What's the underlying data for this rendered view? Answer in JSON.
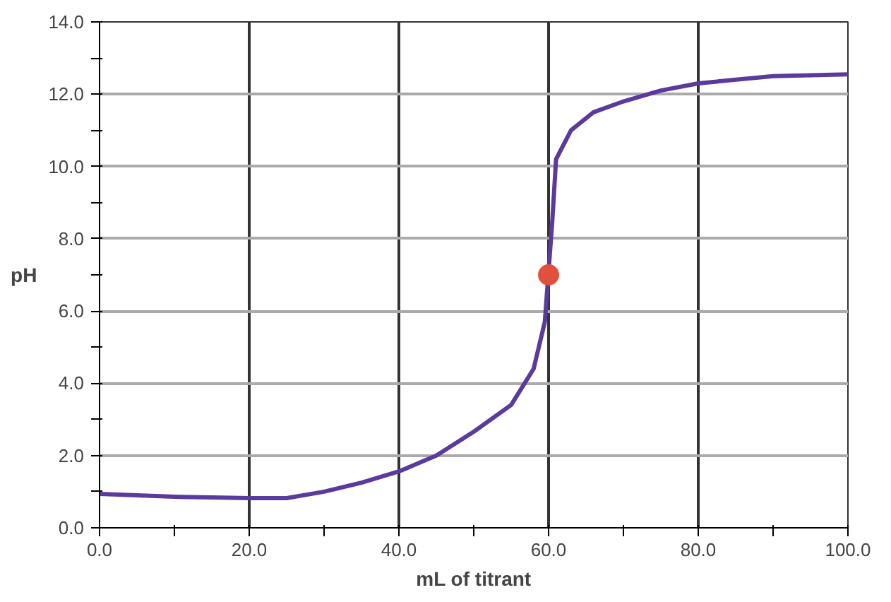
{
  "chart_data": {
    "type": "line",
    "xlabel": "mL of titrant",
    "ylabel": "pH",
    "xlim": [
      0,
      100
    ],
    "ylim": [
      0,
      14
    ],
    "xticks": [
      {
        "value": 0,
        "label": "0.0"
      },
      {
        "value": 10,
        "label": null
      },
      {
        "value": 20,
        "label": "20.0"
      },
      {
        "value": 30,
        "label": null
      },
      {
        "value": 40,
        "label": "40.0"
      },
      {
        "value": 50,
        "label": null
      },
      {
        "value": 60,
        "label": "60.0"
      },
      {
        "value": 70,
        "label": null
      },
      {
        "value": 80,
        "label": "80.0"
      },
      {
        "value": 90,
        "label": null
      },
      {
        "value": 100,
        "label": "100.0"
      }
    ],
    "yticks": [
      {
        "value": 0,
        "label": "0.0"
      },
      {
        "value": 1,
        "label": null
      },
      {
        "value": 2,
        "label": "2.0"
      },
      {
        "value": 3,
        "label": null
      },
      {
        "value": 4,
        "label": "4.0"
      },
      {
        "value": 5,
        "label": null
      },
      {
        "value": 6,
        "label": "6.0"
      },
      {
        "value": 7,
        "label": null
      },
      {
        "value": 8,
        "label": "8.0"
      },
      {
        "value": 9,
        "label": null
      },
      {
        "value": 10,
        "label": "10.0"
      },
      {
        "value": 11,
        "label": null
      },
      {
        "value": 12,
        "label": "12.0"
      },
      {
        "value": 13,
        "label": null
      },
      {
        "value": 14,
        "label": "14.0"
      }
    ],
    "grid": true,
    "series": [
      {
        "color": "#5b3a9e",
        "x": [
          0,
          5,
          10,
          15,
          20,
          25,
          30,
          35,
          40,
          45,
          50,
          55,
          58,
          59.5,
          60.5,
          61,
          63,
          66,
          70,
          75,
          80,
          90,
          100
        ],
        "values": [
          0.94,
          0.9,
          0.86,
          0.84,
          0.82,
          0.82,
          1.0,
          1.25,
          1.56,
          2.0,
          2.66,
          3.4,
          4.4,
          5.7,
          8.5,
          10.2,
          11.0,
          11.5,
          11.8,
          12.1,
          12.3,
          12.5,
          12.55
        ]
      },
      {
        "type": "scatter",
        "marker": "circle",
        "color": "#e0503c",
        "x": [
          60
        ],
        "values": [
          7.0
        ]
      }
    ]
  }
}
